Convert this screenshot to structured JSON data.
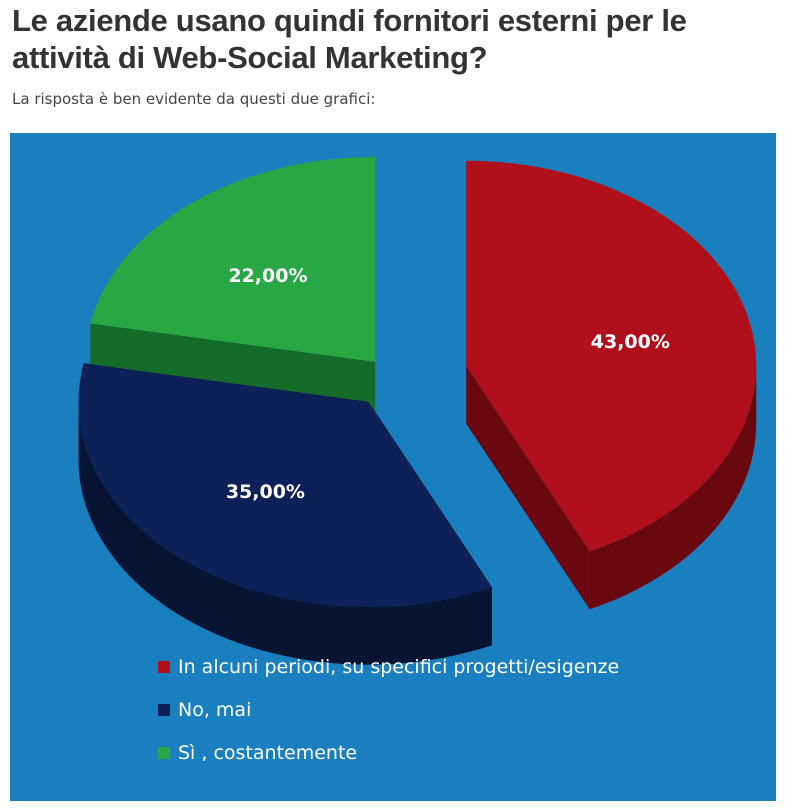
{
  "article": {
    "title": "Le aziende usano quindi fornitori esterni per le attività di Web-Social Marketing?",
    "intro": "La risposta è ben evidente da questi due grafici:"
  },
  "colors": {
    "background": "#1a7fbf",
    "red": "#b0101c",
    "blue": "#0d2158",
    "green": "#27a844"
  },
  "chart_data": {
    "type": "pie",
    "style": "3d-exploded",
    "slices": [
      {
        "category": "In alcuni periodi, su specifici progetti/esigenze",
        "value": 43,
        "label": "43,00%",
        "color": "#b0101c",
        "side": "#6a0810"
      },
      {
        "category": "No, mai",
        "value": 35,
        "label": "35,00%",
        "color": "#0d2158",
        "side": "#071433"
      },
      {
        "category": "Sì , costantemente",
        "value": 22,
        "label": "22,00%",
        "color": "#27a844",
        "side": "#156b28"
      }
    ],
    "legend_position": "bottom"
  }
}
